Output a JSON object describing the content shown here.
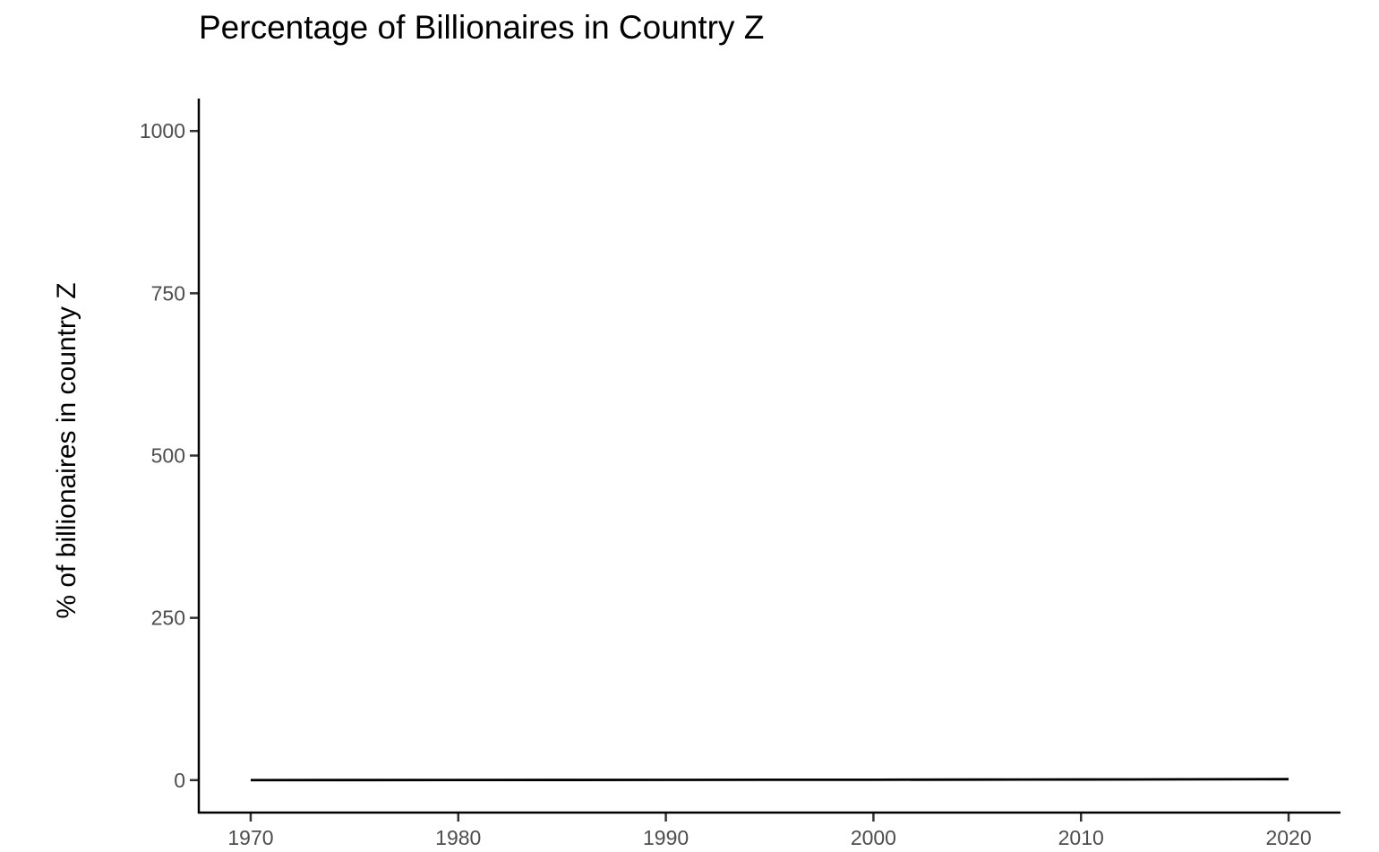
{
  "chart_data": {
    "type": "line",
    "title": "Percentage of Billionaires in Country Z",
    "xlabel": "",
    "ylabel": "% of billionaires in country Z",
    "x": [
      1970,
      1975,
      1980,
      1985,
      1990,
      1995,
      2000,
      2005,
      2010,
      2015,
      2020
    ],
    "series": [
      {
        "values": [
          0.0,
          0.1,
          0.2,
          0.3,
          0.4,
          0.5,
          0.6,
          0.8,
          1.0,
          1.2,
          1.5
        ]
      }
    ],
    "xlim": [
      1967.5,
      2022.5
    ],
    "ylim": [
      -50,
      1050
    ],
    "x_ticks": [
      1970,
      1980,
      1990,
      2000,
      2010,
      2020
    ],
    "y_ticks": [
      0,
      250,
      500,
      750,
      1000
    ],
    "grid": false,
    "legend": "none",
    "line_color": "#000000"
  }
}
